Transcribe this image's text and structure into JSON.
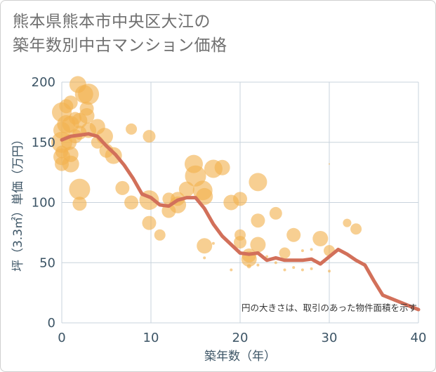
{
  "title_line1": "熊本県熊本市中央区大江の",
  "title_line2": "築年数別中古マンション価格",
  "chart_data": {
    "type": "scatter",
    "xlabel": "築年数（年）",
    "ylabel": "坪（3.3㎡）単価（万円）",
    "xlim": [
      0,
      40
    ],
    "ylim": [
      0,
      200
    ],
    "xticks": [
      "0",
      "10",
      "20",
      "30",
      "40"
    ],
    "yticks": [
      "0",
      "50",
      "100",
      "150",
      "200"
    ],
    "grid": true,
    "annotation": "円の大きさは、取引のあった物件面積を示す",
    "colors": {
      "bubble": "#f2b24f",
      "line": "#d2705a",
      "grid": "#c8d3dc",
      "text": "#3d5566"
    },
    "line": [
      {
        "x": 0,
        "y": 152
      },
      {
        "x": 1,
        "y": 155
      },
      {
        "x": 2,
        "y": 156
      },
      {
        "x": 3,
        "y": 157
      },
      {
        "x": 4,
        "y": 155
      },
      {
        "x": 5,
        "y": 147
      },
      {
        "x": 6,
        "y": 140
      },
      {
        "x": 7,
        "y": 131
      },
      {
        "x": 8,
        "y": 120
      },
      {
        "x": 9,
        "y": 107
      },
      {
        "x": 10,
        "y": 104
      },
      {
        "x": 11,
        "y": 98
      },
      {
        "x": 12,
        "y": 97
      },
      {
        "x": 13,
        "y": 102
      },
      {
        "x": 14,
        "y": 104
      },
      {
        "x": 15,
        "y": 104
      },
      {
        "x": 16,
        "y": 95
      },
      {
        "x": 17,
        "y": 82
      },
      {
        "x": 18,
        "y": 72
      },
      {
        "x": 19,
        "y": 65
      },
      {
        "x": 20,
        "y": 58
      },
      {
        "x": 21,
        "y": 57
      },
      {
        "x": 22,
        "y": 58
      },
      {
        "x": 23,
        "y": 52
      },
      {
        "x": 24,
        "y": 54
      },
      {
        "x": 25,
        "y": 52
      },
      {
        "x": 26,
        "y": 52
      },
      {
        "x": 27,
        "y": 52
      },
      {
        "x": 28,
        "y": 53
      },
      {
        "x": 29,
        "y": 49
      },
      {
        "x": 30,
        "y": 55
      },
      {
        "x": 31,
        "y": 61
      },
      {
        "x": 32,
        "y": 57
      },
      {
        "x": 33,
        "y": 52
      },
      {
        "x": 34,
        "y": 48
      },
      {
        "x": 35,
        "y": 35
      },
      {
        "x": 36,
        "y": 23
      },
      {
        "x": 37,
        "y": 20
      },
      {
        "x": 38,
        "y": 17
      },
      {
        "x": 39,
        "y": 14
      },
      {
        "x": 40,
        "y": 11
      }
    ],
    "points": [
      {
        "x": 0,
        "y": 175,
        "s": 14
      },
      {
        "x": 0,
        "y": 160,
        "s": 12
      },
      {
        "x": 0,
        "y": 150,
        "s": 15
      },
      {
        "x": 0,
        "y": 138,
        "s": 12
      },
      {
        "x": 0,
        "y": 132,
        "s": 10
      },
      {
        "x": 0,
        "y": 142,
        "s": 9
      },
      {
        "x": 0.5,
        "y": 180,
        "s": 10
      },
      {
        "x": 0.5,
        "y": 165,
        "s": 13
      },
      {
        "x": 0.8,
        "y": 150,
        "s": 11
      },
      {
        "x": 1,
        "y": 183,
        "s": 10
      },
      {
        "x": 1,
        "y": 165,
        "s": 12
      },
      {
        "x": 1,
        "y": 140,
        "s": 11
      },
      {
        "x": 1,
        "y": 132,
        "s": 12
      },
      {
        "x": 1.5,
        "y": 170,
        "s": 9
      },
      {
        "x": 1.5,
        "y": 155,
        "s": 10
      },
      {
        "x": 1.8,
        "y": 198,
        "s": 12
      },
      {
        "x": 2,
        "y": 168,
        "s": 11
      },
      {
        "x": 2,
        "y": 158,
        "s": 10
      },
      {
        "x": 2,
        "y": 111,
        "s": 15
      },
      {
        "x": 2,
        "y": 99,
        "s": 10
      },
      {
        "x": 2.5,
        "y": 190,
        "s": 13
      },
      {
        "x": 2.8,
        "y": 172,
        "s": 11
      },
      {
        "x": 2.8,
        "y": 178,
        "s": 10
      },
      {
        "x": 3,
        "y": 190,
        "s": 15
      },
      {
        "x": 3,
        "y": 160,
        "s": 11
      },
      {
        "x": 4,
        "y": 163,
        "s": 11
      },
      {
        "x": 4,
        "y": 150,
        "s": 9
      },
      {
        "x": 4.8,
        "y": 155,
        "s": 12
      },
      {
        "x": 5,
        "y": 143,
        "s": 10
      },
      {
        "x": 5.8,
        "y": 139,
        "s": 12
      },
      {
        "x": 6.8,
        "y": 112,
        "s": 10
      },
      {
        "x": 7.8,
        "y": 161,
        "s": 8
      },
      {
        "x": 7.8,
        "y": 100,
        "s": 10
      },
      {
        "x": 9.8,
        "y": 155,
        "s": 9
      },
      {
        "x": 9.8,
        "y": 102,
        "s": 14
      },
      {
        "x": 9.8,
        "y": 83,
        "s": 10
      },
      {
        "x": 11,
        "y": 73,
        "s": 8
      },
      {
        "x": 12,
        "y": 93,
        "s": 10
      },
      {
        "x": 12,
        "y": 103,
        "s": 9
      },
      {
        "x": 13,
        "y": 103,
        "s": 10
      },
      {
        "x": 13,
        "y": 98,
        "s": 12
      },
      {
        "x": 14,
        "y": 111,
        "s": 11
      },
      {
        "x": 14.8,
        "y": 132,
        "s": 13
      },
      {
        "x": 15,
        "y": 122,
        "s": 15
      },
      {
        "x": 15.8,
        "y": 110,
        "s": 14
      },
      {
        "x": 16,
        "y": 105,
        "s": 12
      },
      {
        "x": 16,
        "y": 64,
        "s": 11
      },
      {
        "x": 16,
        "y": 54,
        "s": 2
      },
      {
        "x": 17,
        "y": 128,
        "s": 13
      },
      {
        "x": 17,
        "y": 66,
        "s": 2
      },
      {
        "x": 18,
        "y": 129,
        "s": 11
      },
      {
        "x": 19,
        "y": 100,
        "s": 11
      },
      {
        "x": 19,
        "y": 44,
        "s": 2
      },
      {
        "x": 20,
        "y": 103,
        "s": 10
      },
      {
        "x": 20,
        "y": 73,
        "s": 8
      },
      {
        "x": 20,
        "y": 67,
        "s": 9
      },
      {
        "x": 21,
        "y": 56,
        "s": 10
      },
      {
        "x": 21,
        "y": 53,
        "s": 11
      },
      {
        "x": 21,
        "y": 47,
        "s": 3
      },
      {
        "x": 22,
        "y": 117,
        "s": 13
      },
      {
        "x": 22,
        "y": 85,
        "s": 10
      },
      {
        "x": 22,
        "y": 65,
        "s": 11
      },
      {
        "x": 22,
        "y": 48,
        "s": 2
      },
      {
        "x": 23,
        "y": 55,
        "s": 2
      },
      {
        "x": 24,
        "y": 91,
        "s": 9
      },
      {
        "x": 24,
        "y": 50,
        "s": 2
      },
      {
        "x": 25,
        "y": 58,
        "s": 8
      },
      {
        "x": 25,
        "y": 44,
        "s": 2
      },
      {
        "x": 26,
        "y": 73,
        "s": 10
      },
      {
        "x": 26,
        "y": 46,
        "s": 2
      },
      {
        "x": 27,
        "y": 60,
        "s": 2
      },
      {
        "x": 27,
        "y": 44,
        "s": 2
      },
      {
        "x": 28,
        "y": 61,
        "s": 2
      },
      {
        "x": 28,
        "y": 45,
        "s": 2
      },
      {
        "x": 29,
        "y": 70,
        "s": 11
      },
      {
        "x": 30,
        "y": 60,
        "s": 8
      },
      {
        "x": 30,
        "y": 132,
        "s": 1
      },
      {
        "x": 30,
        "y": 43,
        "s": 2
      },
      {
        "x": 32,
        "y": 83,
        "s": 6
      },
      {
        "x": 33,
        "y": 78,
        "s": 8
      }
    ]
  }
}
